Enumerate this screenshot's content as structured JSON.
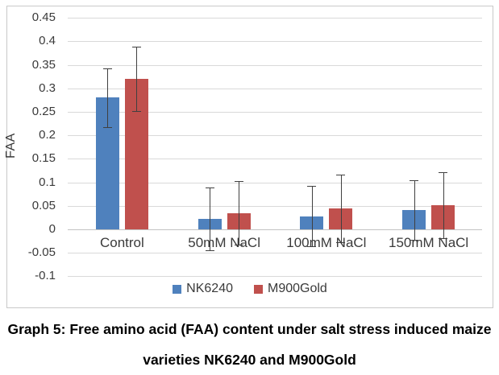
{
  "chart_data": {
    "type": "bar",
    "title": "",
    "xlabel": "",
    "ylabel": "FAA",
    "categories": [
      "Control",
      "50mM NaCl",
      "100mM NaCl",
      "150mM NaCl"
    ],
    "series": [
      {
        "name": "NK6240",
        "color": "#4F81BD",
        "values": [
          0.28,
          0.022,
          0.028,
          0.041
        ],
        "errors": [
          0.062,
          0.067,
          0.064,
          0.063
        ]
      },
      {
        "name": "M900Gold",
        "color": "#C0504D",
        "values": [
          0.32,
          0.035,
          0.045,
          0.052
        ],
        "errors": [
          0.069,
          0.068,
          0.072,
          0.07
        ]
      }
    ],
    "ylim": [
      -0.1,
      0.45
    ],
    "ytick_step": 0.05,
    "yticks": [
      "0.45",
      "0.4",
      "0.35",
      "0.3",
      "0.25",
      "0.2",
      "0.15",
      "0.1",
      "0.05",
      "0",
      "-0.05",
      "-0.1"
    ],
    "grid": true,
    "error_bar_color": "#404040",
    "gridline_color": "#d9d9d9",
    "legend_position": "bottom"
  },
  "caption": {
    "line1": "Graph 5: Free amino acid (FAA) content under salt stress induced maize",
    "line2": "varieties NK6240 and M900Gold"
  }
}
